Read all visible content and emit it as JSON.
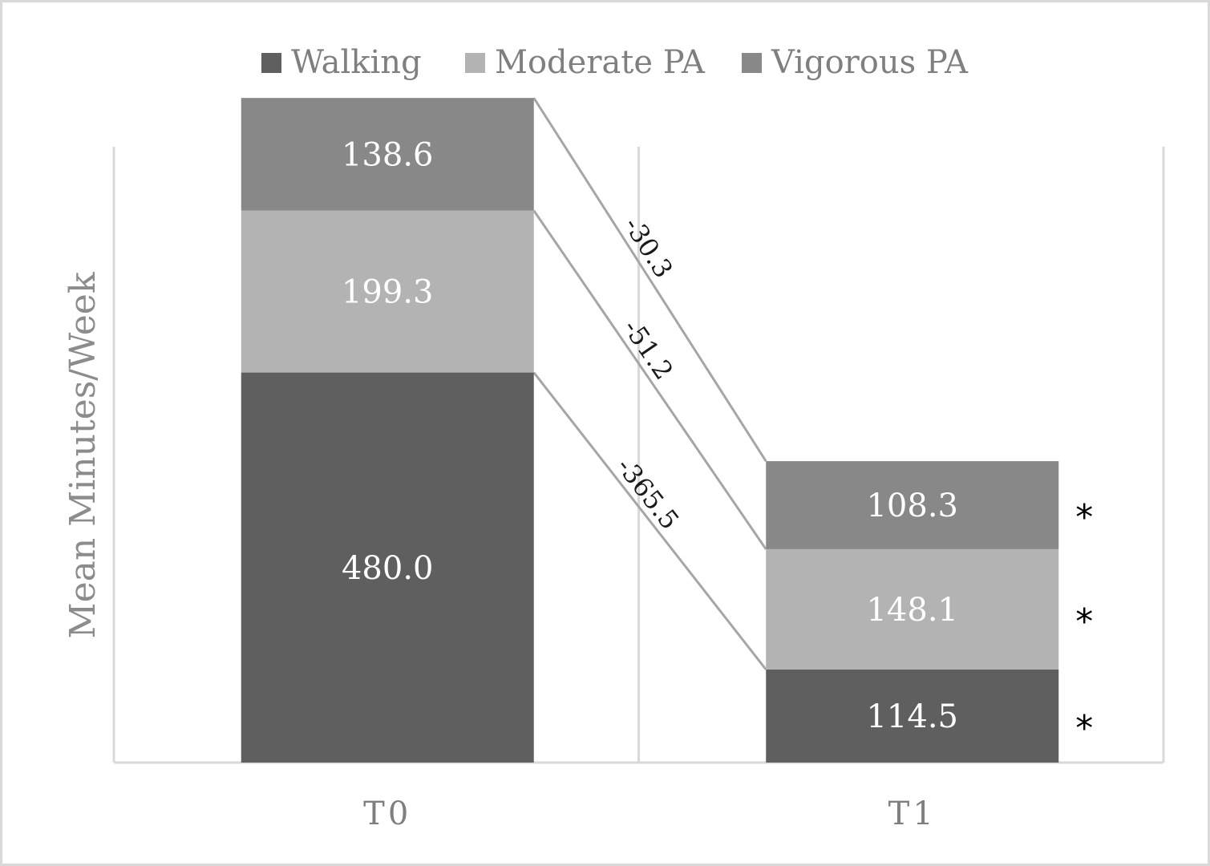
{
  "chart_data": {
    "type": "bar",
    "stacked": true,
    "categories": [
      "T0",
      "T1"
    ],
    "series": [
      {
        "name": "Walking",
        "values": [
          480.0,
          114.5
        ],
        "labels": [
          "480.0",
          "114.5"
        ],
        "color": "#5f5f5f"
      },
      {
        "name": "Moderate PA",
        "values": [
          199.3,
          148.1
        ],
        "labels": [
          "199.3",
          "148.1"
        ],
        "color": "#b3b3b3"
      },
      {
        "name": "Vigorous PA",
        "values": [
          138.6,
          108.3
        ],
        "labels": [
          "138.6",
          "108.3"
        ],
        "color": "#888888"
      }
    ],
    "differences": [
      "-365.5",
      "-51.2",
      "-30.3"
    ],
    "significance_markers": [
      "*",
      "*",
      "*"
    ],
    "ylabel": "Mean Minutes/Week",
    "xlabel": "",
    "ylim": [
      0,
      960
    ],
    "grid": "vertical",
    "legend_position": "top"
  }
}
